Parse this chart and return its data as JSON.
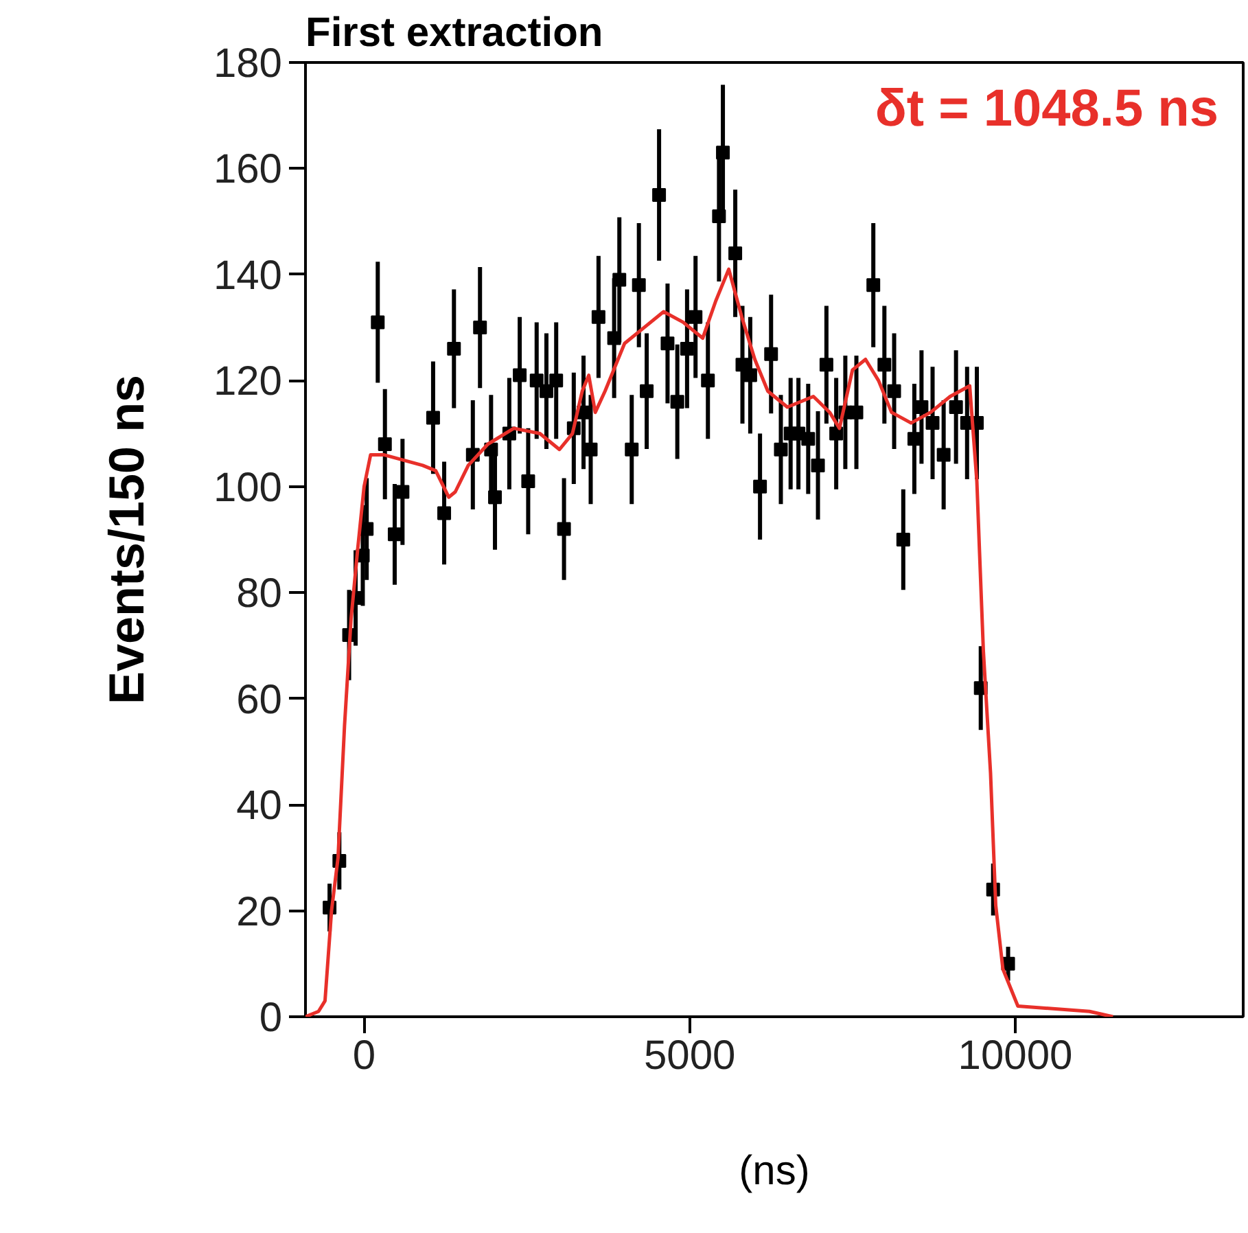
{
  "chart_data": {
    "type": "scatter",
    "title": "First extraction",
    "xlabel": "(ns)",
    "ylabel": "Events/150 ns",
    "xlim": [
      -900,
      13500
    ],
    "ylim": [
      0,
      180
    ],
    "xticks": [
      0,
      5000,
      10000
    ],
    "yticks": [
      0,
      20,
      40,
      60,
      80,
      100,
      120,
      140,
      160,
      180
    ],
    "grid": false,
    "annotations": [
      {
        "text": "δt = 1048.5 ns"
      }
    ],
    "series": [
      {
        "color": "#000000",
        "marker": "square",
        "x": [
          -530,
          -380,
          -230,
          -130,
          -20,
          40,
          210,
          320,
          470,
          590,
          1060,
          1230,
          1380,
          1670,
          1780,
          1950,
          2010,
          2230,
          2390,
          2520,
          2650,
          2800,
          2950,
          3070,
          3220,
          3370,
          3480,
          3600,
          3840,
          3920,
          4110,
          4220,
          4340,
          4530,
          4660,
          4810,
          4960,
          5090,
          5280,
          5450,
          5510,
          5700,
          5810,
          5930,
          6080,
          6250,
          6400,
          6550,
          6670,
          6820,
          6970,
          7100,
          7250,
          7390,
          7560,
          7820,
          7990,
          8140,
          8280,
          8450,
          8560,
          8730,
          8900,
          9090,
          9260,
          9410,
          9470,
          9660,
          9890
        ],
        "values": [
          20.6,
          29.4,
          72,
          79,
          87,
          92,
          131,
          108,
          91,
          99,
          113,
          95,
          126,
          106,
          130,
          107,
          98,
          110,
          121,
          101,
          120,
          118,
          120,
          92,
          111,
          114,
          107,
          132,
          128,
          139,
          107,
          138,
          118,
          155,
          127,
          116,
          126,
          132,
          120,
          151,
          163,
          144,
          123,
          121,
          100,
          125,
          107,
          110,
          110,
          109,
          104,
          123,
          110,
          114,
          114,
          138,
          123,
          118,
          90,
          109,
          115,
          112,
          106,
          115,
          112,
          112,
          62,
          24,
          10
        ],
        "errors": [
          4.5,
          5.4,
          8.5,
          9,
          9.5,
          9.6,
          11.4,
          10.4,
          9.5,
          10,
          10.6,
          9.7,
          11.2,
          10.3,
          11.4,
          10.3,
          9.9,
          10.5,
          11,
          10,
          11,
          10.9,
          11,
          9.6,
          10.5,
          10.7,
          10.3,
          11.5,
          11.3,
          11.8,
          10.3,
          11.7,
          10.9,
          12.4,
          11.3,
          10.8,
          11.2,
          11.5,
          11,
          12.3,
          12.8,
          12,
          11.1,
          11,
          10,
          11.2,
          10.3,
          10.5,
          10.5,
          10.4,
          10.2,
          11.1,
          10.5,
          10.7,
          10.7,
          11.7,
          11.1,
          10.9,
          9.5,
          10.4,
          10.7,
          10.6,
          10.3,
          10.7,
          10.6,
          10.6,
          7.9,
          4.9,
          3.2
        ]
      },
      {
        "type": "line",
        "color": "#e8302a",
        "line_style": "solid",
        "x": [
          -900,
          -700,
          -600,
          -500,
          -400,
          -300,
          -200,
          -100,
          0,
          100,
          300,
          600,
          900,
          1100,
          1300,
          1400,
          1600,
          1900,
          2300,
          2700,
          3000,
          3200,
          3350,
          3450,
          3550,
          3700,
          4000,
          4300,
          4600,
          4900,
          5200,
          5400,
          5600,
          5800,
          6000,
          6200,
          6500,
          6900,
          7150,
          7300,
          7500,
          7700,
          7900,
          8100,
          8400,
          8700,
          9000,
          9300,
          9410,
          9450,
          9510,
          9620,
          9700,
          9810,
          10040,
          11140,
          11500
        ],
        "values": [
          0,
          1,
          3,
          20,
          30,
          55,
          75,
          88,
          100,
          106,
          106,
          105,
          104,
          103,
          98,
          99,
          104,
          108,
          111,
          110,
          107,
          110,
          118,
          121,
          114,
          118,
          127,
          130,
          133,
          131,
          128,
          135,
          141,
          132,
          124,
          118,
          115,
          117,
          114,
          111,
          122,
          124,
          120,
          114,
          112,
          114,
          117,
          119,
          101,
          88,
          69,
          46,
          21,
          9,
          2,
          1,
          0
        ]
      }
    ]
  }
}
